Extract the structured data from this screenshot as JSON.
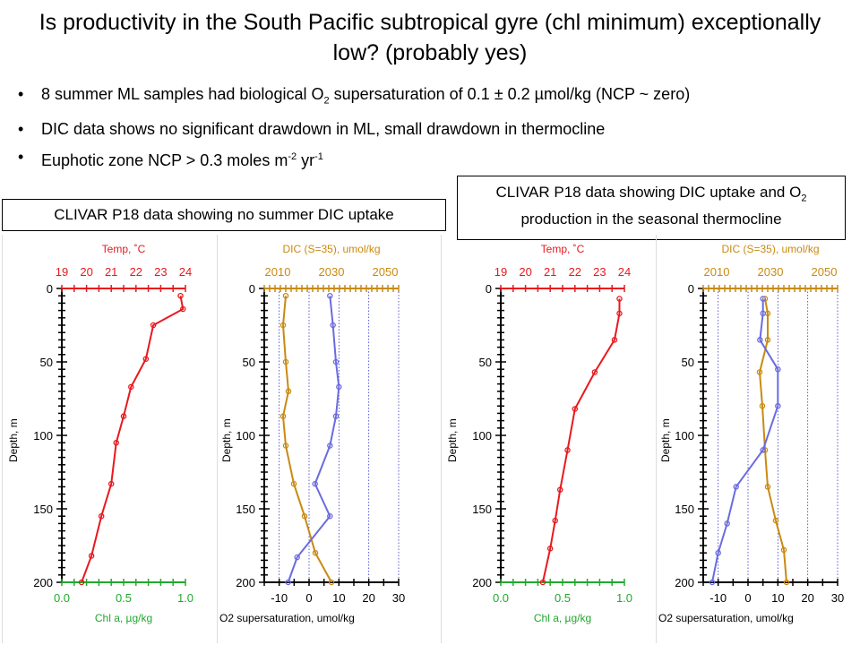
{
  "title": "Is productivity in the South Pacific subtropical gyre (chl minimum) exceptionally low? (probably yes)",
  "bullets": [
    {
      "pre": "8 summer ML samples had biological O",
      "sub": "2",
      "post": " supersaturation of 0.1 ± 0.2 µmol/kg (NCP ~ zero)"
    },
    {
      "pre": "DIC data shows no significant drawdown in ML, small drawdown in thermocline"
    },
    {
      "pre": "Euphotic zone NCP > 0.3 moles m",
      "sup1": "-2",
      "mid": " yr",
      "sup2": "-1"
    }
  ],
  "bullet_symbol": "•",
  "box_left": {
    "text": "CLIVAR P18 data showing no summer DIC uptake"
  },
  "box_right": {
    "line1_pre": "CLIVAR P18 data showing DIC uptake and O",
    "line1_sub": "2",
    "line2": "production in the seasonal thermocline"
  },
  "colors": {
    "temp": "#e8191e",
    "chl": "#22a82e",
    "dic": "#c98a12",
    "o2": "#6b6be0",
    "axis": "#000000",
    "grid": "#3333cc"
  },
  "chart_data": [
    {
      "type": "line",
      "top_axis": {
        "label": "Temp, ˚C",
        "ticks": [
          "19",
          "20",
          "21",
          "22",
          "23",
          "24"
        ],
        "range": [
          19,
          24
        ]
      },
      "bottom_axis": {
        "label": "Chl a, µg/kg",
        "ticks": [
          "0.0",
          "0.5",
          "1.0"
        ],
        "range": [
          0,
          1
        ]
      },
      "y_axis": {
        "label": "Depth, m",
        "ticks": [
          "0",
          "50",
          "100",
          "150",
          "200"
        ],
        "range": [
          0,
          200
        ],
        "inverted": true
      },
      "series": [
        {
          "color_key": "temp",
          "axis": "top",
          "points": [
            [
              23.8,
              5
            ],
            [
              23.9,
              14
            ],
            [
              22.7,
              25
            ],
            [
              22.4,
              48
            ],
            [
              21.8,
              67
            ],
            [
              21.5,
              87
            ],
            [
              21.2,
              105
            ],
            [
              21.0,
              133
            ],
            [
              20.6,
              155
            ],
            [
              20.2,
              182
            ],
            [
              19.8,
              200
            ]
          ]
        }
      ]
    },
    {
      "type": "line",
      "top_axis": {
        "label": "DIC (S=35), umol/kg",
        "ticks": [
          "2010",
          "2030",
          "2050"
        ],
        "range": [
          2005,
          2055
        ]
      },
      "bottom_axis": {
        "label": "O2 supersaturation, umol/kg",
        "ticks": [
          "-10",
          "0",
          "10",
          "20",
          "30"
        ],
        "range": [
          -15,
          30
        ]
      },
      "y_axis": {
        "label": "Depth, m",
        "ticks": [
          "0",
          "50",
          "100",
          "150",
          "200"
        ],
        "range": [
          0,
          200
        ],
        "inverted": true
      },
      "series": [
        {
          "color_key": "dic",
          "axis": "top",
          "points": [
            [
              2013,
              5
            ],
            [
              2012,
              25
            ],
            [
              2013,
              50
            ],
            [
              2014,
              70
            ],
            [
              2012,
              87
            ],
            [
              2013,
              107
            ],
            [
              2016,
              133
            ],
            [
              2020,
              155
            ],
            [
              2024,
              180
            ],
            [
              2030,
              200
            ]
          ]
        },
        {
          "color_key": "o2",
          "axis": "bottom",
          "points": [
            [
              7,
              5
            ],
            [
              8,
              25
            ],
            [
              9,
              50
            ],
            [
              10,
              67
            ],
            [
              9,
              87
            ],
            [
              7,
              107
            ],
            [
              2,
              133
            ],
            [
              7,
              155
            ],
            [
              -4,
              183
            ],
            [
              -7,
              200
            ]
          ]
        }
      ]
    },
    {
      "type": "line",
      "top_axis": {
        "label": "Temp, ˚C",
        "ticks": [
          "19",
          "20",
          "21",
          "22",
          "23",
          "24"
        ],
        "range": [
          19,
          24
        ]
      },
      "bottom_axis": {
        "label": "Chl a, µg/kg",
        "ticks": [
          "0.0",
          "0.5",
          "1.0"
        ],
        "range": [
          0,
          1
        ]
      },
      "y_axis": {
        "label": "Depth, m",
        "ticks": [
          "0",
          "50",
          "100",
          "150",
          "200"
        ],
        "range": [
          0,
          200
        ],
        "inverted": true
      },
      "series": [
        {
          "color_key": "temp",
          "axis": "top",
          "points": [
            [
              23.8,
              7
            ],
            [
              23.8,
              17
            ],
            [
              23.6,
              35
            ],
            [
              22.8,
              57
            ],
            [
              22.0,
              82
            ],
            [
              21.7,
              110
            ],
            [
              21.4,
              137
            ],
            [
              21.2,
              158
            ],
            [
              21.0,
              177
            ],
            [
              20.7,
              200
            ]
          ]
        }
      ]
    },
    {
      "type": "line",
      "top_axis": {
        "label": "DIC (S=35), umol/kg",
        "ticks": [
          "2010",
          "2030",
          "2050"
        ],
        "range": [
          2005,
          2055
        ]
      },
      "bottom_axis": {
        "label": "O2 supersaturation, umol/kg",
        "ticks": [
          "-10",
          "0",
          "10",
          "20",
          "30"
        ],
        "range": [
          -15,
          30
        ]
      },
      "y_axis": {
        "label": "Depth, m",
        "ticks": [
          "0",
          "50",
          "100",
          "150",
          "200"
        ],
        "range": [
          0,
          200
        ],
        "inverted": true
      },
      "series": [
        {
          "color_key": "dic",
          "axis": "top",
          "points": [
            [
              2028,
              7
            ],
            [
              2029,
              17
            ],
            [
              2029,
              35
            ],
            [
              2026,
              57
            ],
            [
              2027,
              80
            ],
            [
              2028,
              110
            ],
            [
              2029,
              135
            ],
            [
              2032,
              158
            ],
            [
              2035,
              178
            ],
            [
              2036,
              200
            ]
          ]
        },
        {
          "color_key": "o2",
          "axis": "bottom",
          "points": [
            [
              5,
              7
            ],
            [
              5,
              17
            ],
            [
              4,
              35
            ],
            [
              10,
              55
            ],
            [
              10,
              80
            ],
            [
              5,
              110
            ],
            [
              -4,
              135
            ],
            [
              -7,
              160
            ],
            [
              -10,
              180
            ],
            [
              -12,
              200
            ]
          ]
        }
      ]
    }
  ]
}
